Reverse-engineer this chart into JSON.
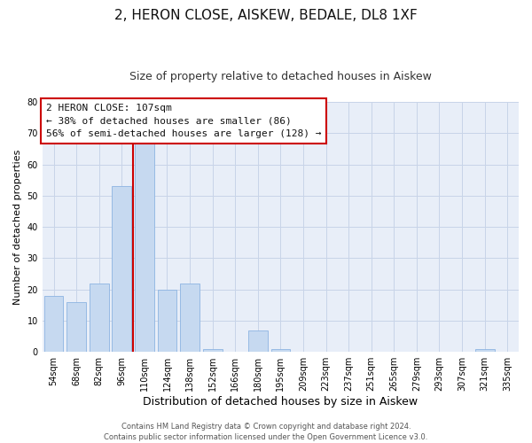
{
  "title": "2, HERON CLOSE, AISKEW, BEDALE, DL8 1XF",
  "subtitle": "Size of property relative to detached houses in Aiskew",
  "xlabel": "Distribution of detached houses by size in Aiskew",
  "ylabel": "Number of detached properties",
  "bar_labels": [
    "54sqm",
    "68sqm",
    "82sqm",
    "96sqm",
    "110sqm",
    "124sqm",
    "138sqm",
    "152sqm",
    "166sqm",
    "180sqm",
    "195sqm",
    "209sqm",
    "223sqm",
    "237sqm",
    "251sqm",
    "265sqm",
    "279sqm",
    "293sqm",
    "307sqm",
    "321sqm",
    "335sqm"
  ],
  "bar_values": [
    18,
    16,
    22,
    53,
    67,
    20,
    22,
    1,
    0,
    7,
    1,
    0,
    0,
    0,
    0,
    0,
    0,
    0,
    0,
    1,
    0
  ],
  "bar_color": "#c6d9f0",
  "bar_edge_color": "#8db4e2",
  "vline_x": 3.5,
  "vline_color": "#cc0000",
  "annotation_text_line1": "2 HERON CLOSE: 107sqm",
  "annotation_text_line2": "← 38% of detached houses are smaller (86)",
  "annotation_text_line3": "56% of semi-detached houses are larger (128) →",
  "ylim": [
    0,
    80
  ],
  "yticks": [
    0,
    10,
    20,
    30,
    40,
    50,
    60,
    70,
    80
  ],
  "title_fontsize": 11,
  "subtitle_fontsize": 9,
  "xlabel_fontsize": 9,
  "ylabel_fontsize": 8,
  "tick_fontsize": 7,
  "annotation_fontsize": 8,
  "footnote_fontsize": 6,
  "background_color": "#ffffff",
  "grid_color": "#c8d4e8",
  "ax_background": "#e8eef8",
  "footnote": "Contains HM Land Registry data © Crown copyright and database right 2024.\nContains public sector information licensed under the Open Government Licence v3.0."
}
